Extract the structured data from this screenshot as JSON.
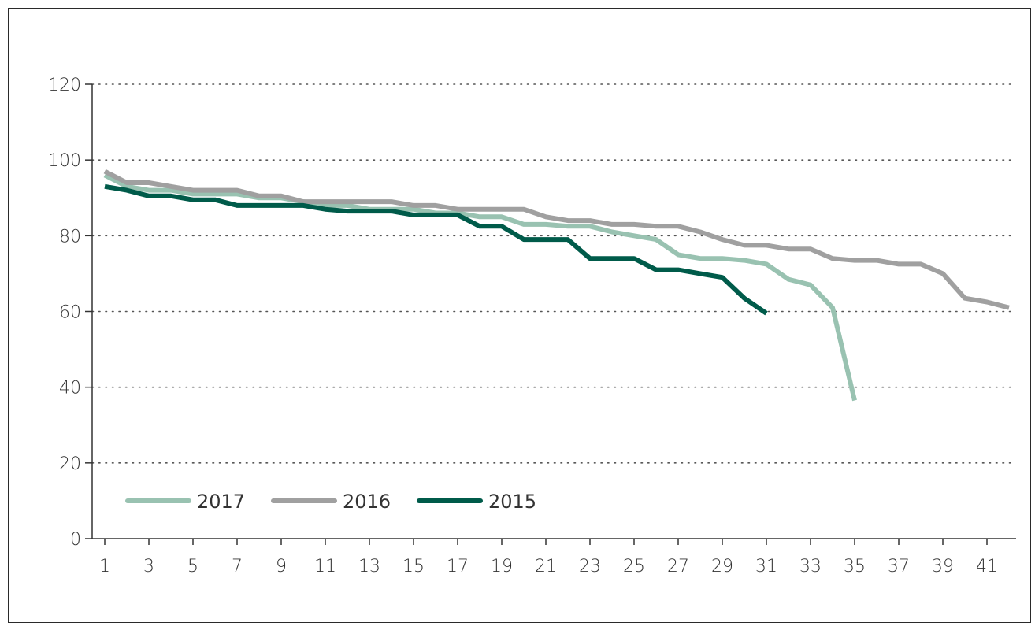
{
  "chart_data": {
    "type": "line",
    "ylim": [
      0,
      120
    ],
    "y_ticks": [
      "0",
      "20",
      "40",
      "60",
      "80",
      "100",
      "120"
    ],
    "x_ticks": [
      "1",
      "3",
      "5",
      "7",
      "9",
      "11",
      "13",
      "15",
      "17",
      "19",
      "21",
      "23",
      "25",
      "27",
      "29",
      "31",
      "33",
      "35",
      "37",
      "39",
      "41"
    ],
    "grid": "horizontal dotted",
    "legend_position": "bottom-left",
    "series": [
      {
        "name": "2017",
        "color": "#99c2b1",
        "x": [
          1,
          2,
          3,
          4,
          5,
          6,
          7,
          8,
          9,
          10,
          11,
          12,
          13,
          14,
          15,
          16,
          17,
          18,
          19,
          20,
          21,
          22,
          23,
          24,
          25,
          26,
          27,
          28,
          29,
          30,
          31,
          32,
          33,
          34,
          35
        ],
        "values": [
          96,
          93,
          92,
          92,
          91,
          91,
          91,
          90,
          90,
          89,
          88,
          88,
          87,
          87,
          87,
          86,
          86,
          85,
          85,
          83,
          83,
          82.5,
          82.5,
          81,
          80,
          79,
          75,
          74,
          74,
          73.5,
          72.5,
          68.5,
          67,
          61,
          36.5
        ]
      },
      {
        "name": "2016",
        "color": "#a0a0a0",
        "x": [
          1,
          2,
          3,
          4,
          5,
          6,
          7,
          8,
          9,
          10,
          11,
          12,
          13,
          14,
          15,
          16,
          17,
          18,
          19,
          20,
          21,
          22,
          23,
          24,
          25,
          26,
          27,
          28,
          29,
          30,
          31,
          32,
          33,
          34,
          35,
          36,
          37,
          38,
          39,
          40,
          41,
          42
        ],
        "values": [
          97,
          94,
          94,
          93,
          92,
          92,
          92,
          90.5,
          90.5,
          89,
          89,
          89,
          89,
          89,
          88,
          88,
          87,
          87,
          87,
          87,
          85,
          84,
          84,
          83,
          83,
          82.5,
          82.5,
          81,
          79,
          77.5,
          77.5,
          76.5,
          76.5,
          74,
          73.5,
          73.5,
          72.5,
          72.5,
          70,
          63.5,
          62.5,
          61
        ]
      },
      {
        "name": "2015",
        "color": "#005b4a",
        "x": [
          1,
          2,
          3,
          4,
          5,
          6,
          7,
          8,
          9,
          10,
          11,
          12,
          13,
          14,
          15,
          16,
          17,
          18,
          19,
          20,
          21,
          22,
          23,
          24,
          25,
          26,
          27,
          28,
          29,
          30,
          31
        ],
        "values": [
          93,
          92,
          90.5,
          90.5,
          89.5,
          89.5,
          88,
          88,
          88,
          88,
          87,
          86.5,
          86.5,
          86.5,
          85.5,
          85.5,
          85.5,
          82.5,
          82.5,
          79,
          79,
          79,
          74,
          74,
          74,
          71,
          71,
          70,
          69,
          63.5,
          59.5
        ]
      }
    ]
  }
}
